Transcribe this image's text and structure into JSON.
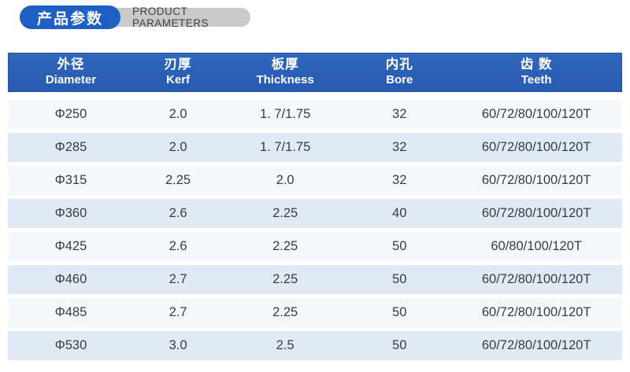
{
  "title": {
    "zh": "产品参数",
    "en": "PRODUCT PARAMETERS",
    "badge_color": "#1d5fc3",
    "pill_color": "#c9c9c9"
  },
  "table": {
    "header_color": "#2a5fb5",
    "row_light_color": "#f4f8fb",
    "row_dark_color": "#dfeaf4",
    "columns": [
      {
        "zh": "外径",
        "en": "Diameter"
      },
      {
        "zh": "刃厚",
        "en": "Kerf"
      },
      {
        "zh": "板厚",
        "en": "Thickness"
      },
      {
        "zh": "内孔",
        "en": "Bore"
      },
      {
        "zh": "齿 数",
        "en": "Teeth"
      }
    ],
    "rows": [
      [
        "Φ250",
        "2.0",
        "1. 7/1.75",
        "32",
        "60/72/80/100/120T"
      ],
      [
        "Φ285",
        "2.0",
        "1. 7/1.75",
        "32",
        "60/72/80/100/120T"
      ],
      [
        "Φ315",
        "2.25",
        "2.0",
        "32",
        "60/72/80/100/120T"
      ],
      [
        "Φ360",
        "2.6",
        "2.25",
        "40",
        "60/72/80/100/120T"
      ],
      [
        "Φ425",
        "2.6",
        "2.25",
        "50",
        "60/80/100/120T"
      ],
      [
        "Φ460",
        "2.7",
        "2.25",
        "50",
        "60/72/80/100/120T"
      ],
      [
        "Φ485",
        "2.7",
        "2.25",
        "50",
        "60/72/80/100/120T"
      ],
      [
        "Φ530",
        "3.0",
        "2.5",
        "50",
        "60/72/80/100/120T"
      ]
    ]
  }
}
